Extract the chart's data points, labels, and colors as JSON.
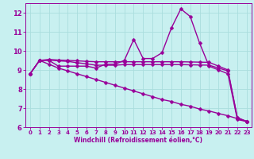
{
  "xlabel": "Windchill (Refroidissement éolien,°C)",
  "bg_color": "#c8f0f0",
  "line_color": "#990099",
  "grid_color": "#aadddd",
  "x": [
    0,
    1,
    2,
    3,
    4,
    5,
    6,
    7,
    8,
    9,
    10,
    11,
    12,
    13,
    14,
    15,
    16,
    17,
    18,
    19,
    20,
    21,
    22,
    23
  ],
  "line1": [
    8.8,
    9.5,
    9.5,
    9.2,
    9.2,
    9.2,
    9.2,
    9.1,
    9.3,
    9.3,
    9.5,
    10.6,
    9.6,
    9.6,
    9.9,
    11.2,
    12.2,
    11.8,
    10.4,
    9.2,
    9.0,
    8.8,
    6.4,
    6.3
  ],
  "line2": [
    8.8,
    9.5,
    9.55,
    9.52,
    9.5,
    9.48,
    9.45,
    9.43,
    9.43,
    9.43,
    9.43,
    9.43,
    9.43,
    9.43,
    9.43,
    9.43,
    9.43,
    9.42,
    9.41,
    9.4,
    9.2,
    9.0,
    6.5,
    6.3
  ],
  "line3": [
    8.8,
    9.5,
    9.52,
    9.48,
    9.45,
    9.38,
    9.32,
    9.25,
    9.25,
    9.25,
    9.28,
    9.28,
    9.28,
    9.28,
    9.28,
    9.28,
    9.28,
    9.27,
    9.26,
    9.25,
    9.1,
    8.95,
    6.5,
    6.3
  ],
  "line4": [
    8.8,
    9.5,
    9.3,
    9.1,
    8.95,
    8.8,
    8.65,
    8.5,
    8.35,
    8.2,
    8.05,
    7.9,
    7.75,
    7.6,
    7.45,
    7.35,
    7.2,
    7.1,
    6.95,
    6.85,
    6.72,
    6.6,
    6.45,
    6.3
  ],
  "ylim": [
    6,
    12.5
  ],
  "xlim": [
    -0.5,
    23.5
  ],
  "yticks": [
    6,
    7,
    8,
    9,
    10,
    11,
    12
  ],
  "xticks": [
    0,
    1,
    2,
    3,
    4,
    5,
    6,
    7,
    8,
    9,
    10,
    11,
    12,
    13,
    14,
    15,
    16,
    17,
    18,
    19,
    20,
    21,
    22,
    23
  ],
  "markersize": 2.5,
  "linewidth": 1.0
}
